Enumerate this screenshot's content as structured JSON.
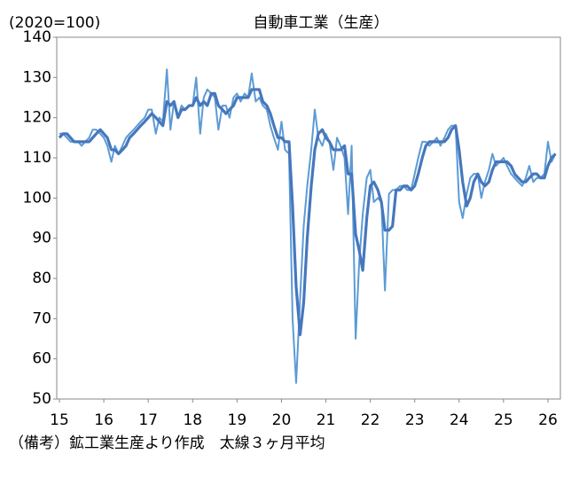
{
  "chart_data": {
    "type": "line",
    "title": "自動車工業（生産）",
    "y_label": "(2020=100)",
    "note": "（備考）鉱工業生産より作成　太線３ヶ月平均",
    "x": [
      15,
      15.08,
      15.17,
      15.25,
      15.33,
      15.42,
      15.5,
      15.58,
      15.67,
      15.75,
      15.83,
      15.92,
      16,
      16.08,
      16.17,
      16.25,
      16.33,
      16.42,
      16.5,
      16.58,
      16.67,
      16.75,
      16.83,
      16.92,
      17,
      17.08,
      17.17,
      17.25,
      17.33,
      17.42,
      17.5,
      17.58,
      17.67,
      17.75,
      17.83,
      17.92,
      18,
      18.08,
      18.17,
      18.25,
      18.33,
      18.42,
      18.5,
      18.58,
      18.67,
      18.75,
      18.83,
      18.92,
      19,
      19.08,
      19.17,
      19.25,
      19.33,
      19.42,
      19.5,
      19.58,
      19.67,
      19.75,
      19.83,
      19.92,
      20,
      20.08,
      20.17,
      20.25,
      20.33,
      20.42,
      20.5,
      20.58,
      20.67,
      20.75,
      20.83,
      20.92,
      21,
      21.08,
      21.17,
      21.25,
      21.33,
      21.42,
      21.5,
      21.58,
      21.67,
      21.75,
      21.83,
      21.92,
      22,
      22.08,
      22.17,
      22.25,
      22.33,
      22.42,
      22.5,
      22.58,
      22.67,
      22.75,
      22.83,
      22.92,
      23,
      23.08,
      23.17,
      23.25,
      23.33,
      23.42,
      23.5,
      23.58,
      23.67,
      23.75,
      23.83,
      23.92,
      24,
      24.08,
      24.17,
      24.25,
      24.33,
      24.42,
      24.5,
      24.58,
      24.67,
      24.75,
      24.83,
      24.92,
      25,
      25.08,
      25.17,
      25.25,
      25.33,
      25.42,
      25.5,
      25.58,
      25.67,
      25.75,
      25.83,
      25.92,
      26,
      26.08,
      26.17
    ],
    "series": [
      {
        "color": "#5b9bd5",
        "width": 2,
        "values": [
          116,
          116,
          115,
          114,
          114,
          114,
          113,
          114,
          115,
          117,
          117,
          116,
          115,
          113,
          109,
          113,
          111,
          113,
          115,
          116,
          117,
          118,
          119,
          120,
          122,
          122,
          116,
          120,
          119,
          132,
          117,
          124,
          120,
          123,
          122,
          123,
          123,
          130,
          116,
          125,
          127,
          126,
          125,
          117,
          123,
          123,
          120,
          125,
          126,
          124,
          126,
          125,
          131,
          124,
          125,
          123,
          122,
          118,
          115,
          112,
          119,
          112,
          111,
          70,
          54,
          75,
          93,
          103,
          112,
          122,
          115,
          113,
          116,
          114,
          107,
          115,
          113,
          110,
          96,
          113,
          65,
          84,
          96,
          105,
          107,
          99,
          100,
          99,
          77,
          101,
          102,
          102,
          103,
          103,
          102,
          102,
          106,
          110,
          114,
          114,
          113,
          114,
          115,
          113,
          115,
          117,
          118,
          118,
          99,
          95,
          101,
          105,
          106,
          106,
          100,
          104,
          107,
          111,
          108,
          109,
          110,
          108,
          106,
          105,
          104,
          103,
          105,
          108,
          104,
          105,
          105,
          106,
          114,
          109,
          111
        ]
      },
      {
        "color": "#4677bd",
        "width": 3.2,
        "values": [
          115,
          116,
          116,
          115,
          114,
          114,
          114,
          114,
          114,
          115,
          116,
          117,
          116,
          115,
          112,
          112,
          111,
          112,
          113,
          115,
          116,
          117,
          118,
          119,
          120,
          121,
          120,
          119,
          118,
          124,
          123,
          124,
          120,
          122,
          122,
          123,
          123,
          125,
          123,
          124,
          123,
          126,
          126,
          123,
          122,
          121,
          122,
          123,
          125,
          125,
          125,
          125,
          127,
          127,
          127,
          124,
          123,
          121,
          118,
          115,
          115,
          114,
          114,
          98,
          78,
          66,
          74,
          90,
          103,
          112,
          116,
          117,
          115,
          114,
          112,
          112,
          112,
          113,
          106,
          106,
          91,
          87,
          82,
          95,
          103,
          104,
          102,
          99,
          92,
          92,
          93,
          102,
          102,
          103,
          103,
          102,
          103,
          106,
          110,
          113,
          114,
          114,
          114,
          114,
          114,
          115,
          117,
          118,
          112,
          104,
          98,
          100,
          104,
          106,
          104,
          103,
          104,
          107,
          109,
          109,
          109,
          109,
          108,
          106,
          105,
          104,
          104,
          105,
          106,
          106,
          105,
          105,
          108,
          110,
          111
        ]
      }
    ],
    "xlim": [
      14.94,
      26.28
    ],
    "xticks": [
      15,
      16,
      17,
      18,
      19,
      20,
      21,
      22,
      23,
      24,
      25,
      26
    ],
    "ylim": [
      50,
      140
    ],
    "yticks": [
      50,
      60,
      70,
      80,
      90,
      100,
      110,
      120,
      130,
      140
    ]
  }
}
